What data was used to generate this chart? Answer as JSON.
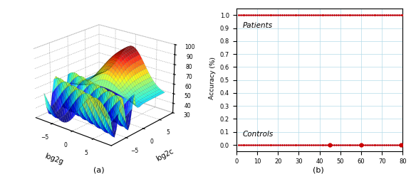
{
  "subplot_a": {
    "log2c_range": [
      -8,
      8
    ],
    "log2g_range": [
      -8,
      8
    ],
    "ylabel": "Accuracy (%)",
    "xlabel_c": "log2c",
    "xlabel_g": "log2g",
    "zlim": [
      30,
      100
    ],
    "zticks": [
      30,
      40,
      50,
      60,
      70,
      80,
      90,
      100
    ],
    "label": "(a)"
  },
  "subplot_b": {
    "xlim": [
      0,
      80
    ],
    "ylim": [
      -0.05,
      1.05
    ],
    "yticks": [
      0.0,
      0.1,
      0.2,
      0.3,
      0.4,
      0.5,
      0.6,
      0.7,
      0.8,
      0.9,
      1.0
    ],
    "xticks": [
      0,
      10,
      20,
      30,
      40,
      50,
      60,
      70,
      80
    ],
    "label_patients": "Patients",
    "label_controls": "Controls",
    "label": "(b)",
    "line_color": "#00008B",
    "dot_color": "#CC0000"
  }
}
